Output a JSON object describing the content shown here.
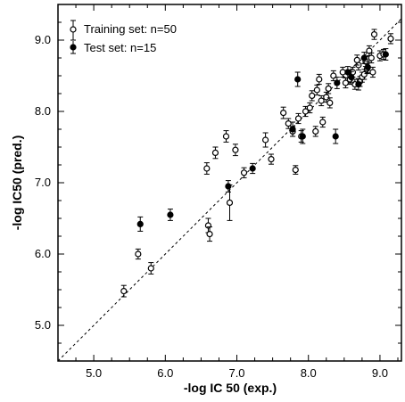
{
  "chart_data": {
    "type": "scatter",
    "xlabel": "-log IC 50 (exp.)",
    "ylabel": "-log IC50 (pred.)",
    "xlim": [
      4.5,
      9.3
    ],
    "ylim": [
      4.5,
      9.5
    ],
    "x_ticks": [
      "5.0",
      "6.0",
      "7.0",
      "8.0",
      "9.0"
    ],
    "y_ticks": [
      "5.0",
      "6.0",
      "7.0",
      "8.0",
      "9.0"
    ],
    "legend": {
      "placement": "top-left",
      "entries": [
        "Training set: n=50",
        "Test set: n=15"
      ]
    },
    "reference_line": {
      "style": "dashed",
      "slope": 1,
      "intercept": 0
    },
    "series": [
      {
        "name": "Training set: n=50",
        "marker": "open-circle",
        "points": [
          [
            5.42,
            5.48,
            0.08
          ],
          [
            5.62,
            6.0,
            0.07
          ],
          [
            5.8,
            5.8,
            0.08
          ],
          [
            6.58,
            7.2,
            0.08
          ],
          [
            6.6,
            6.4,
            0.1
          ],
          [
            6.62,
            6.28,
            0.1
          ],
          [
            6.7,
            7.42,
            0.08
          ],
          [
            6.85,
            7.65,
            0.08
          ],
          [
            6.9,
            6.72,
            0.25
          ],
          [
            6.98,
            7.46,
            0.08
          ],
          [
            7.1,
            7.14,
            0.07
          ],
          [
            7.4,
            7.6,
            0.1
          ],
          [
            7.48,
            7.33,
            0.07
          ],
          [
            7.65,
            7.98,
            0.08
          ],
          [
            7.72,
            7.83,
            0.07
          ],
          [
            7.78,
            7.72,
            0.07
          ],
          [
            7.82,
            7.18,
            0.06
          ],
          [
            7.86,
            7.9,
            0.07
          ],
          [
            7.9,
            7.65,
            0.08
          ],
          [
            7.96,
            8.0,
            0.07
          ],
          [
            8.02,
            8.05,
            0.07
          ],
          [
            8.05,
            8.22,
            0.07
          ],
          [
            8.1,
            7.72,
            0.07
          ],
          [
            8.12,
            8.3,
            0.07
          ],
          [
            8.15,
            8.45,
            0.07
          ],
          [
            8.18,
            8.15,
            0.07
          ],
          [
            8.2,
            7.85,
            0.07
          ],
          [
            8.25,
            8.2,
            0.07
          ],
          [
            8.28,
            8.32,
            0.07
          ],
          [
            8.3,
            8.12,
            0.07
          ],
          [
            8.35,
            8.5,
            0.07
          ],
          [
            8.48,
            8.55,
            0.07
          ],
          [
            8.52,
            8.4,
            0.07
          ],
          [
            8.58,
            8.45,
            0.07
          ],
          [
            8.62,
            8.55,
            0.07
          ],
          [
            8.65,
            8.38,
            0.07
          ],
          [
            8.7,
            8.65,
            0.07
          ],
          [
            8.72,
            8.42,
            0.07
          ],
          [
            8.75,
            8.48,
            0.07
          ],
          [
            8.78,
            8.52,
            0.07
          ],
          [
            8.8,
            8.7,
            0.07
          ],
          [
            8.82,
            8.6,
            0.07
          ],
          [
            8.85,
            8.85,
            0.07
          ],
          [
            8.88,
            8.75,
            0.07
          ],
          [
            8.9,
            8.55,
            0.07
          ],
          [
            8.92,
            9.08,
            0.07
          ],
          [
            9.0,
            8.78,
            0.07
          ],
          [
            9.05,
            8.8,
            0.07
          ],
          [
            9.15,
            9.02,
            0.07
          ],
          [
            8.68,
            8.72,
            0.07
          ]
        ]
      },
      {
        "name": "Test set: n=15",
        "marker": "filled-circle",
        "points": [
          [
            5.65,
            6.42,
            0.1
          ],
          [
            6.07,
            6.55,
            0.08
          ],
          [
            6.88,
            6.95,
            0.08
          ],
          [
            7.22,
            7.2,
            0.07
          ],
          [
            7.78,
            7.75,
            0.1
          ],
          [
            7.85,
            8.45,
            0.1
          ],
          [
            7.92,
            7.65,
            0.1
          ],
          [
            8.38,
            7.65,
            0.1
          ],
          [
            8.4,
            8.4,
            0.08
          ],
          [
            8.55,
            8.55,
            0.08
          ],
          [
            8.7,
            8.38,
            0.08
          ],
          [
            8.78,
            8.75,
            0.08
          ],
          [
            8.83,
            8.62,
            0.08
          ],
          [
            9.08,
            8.8,
            0.08
          ],
          [
            8.6,
            8.48,
            0.08
          ]
        ]
      }
    ]
  }
}
